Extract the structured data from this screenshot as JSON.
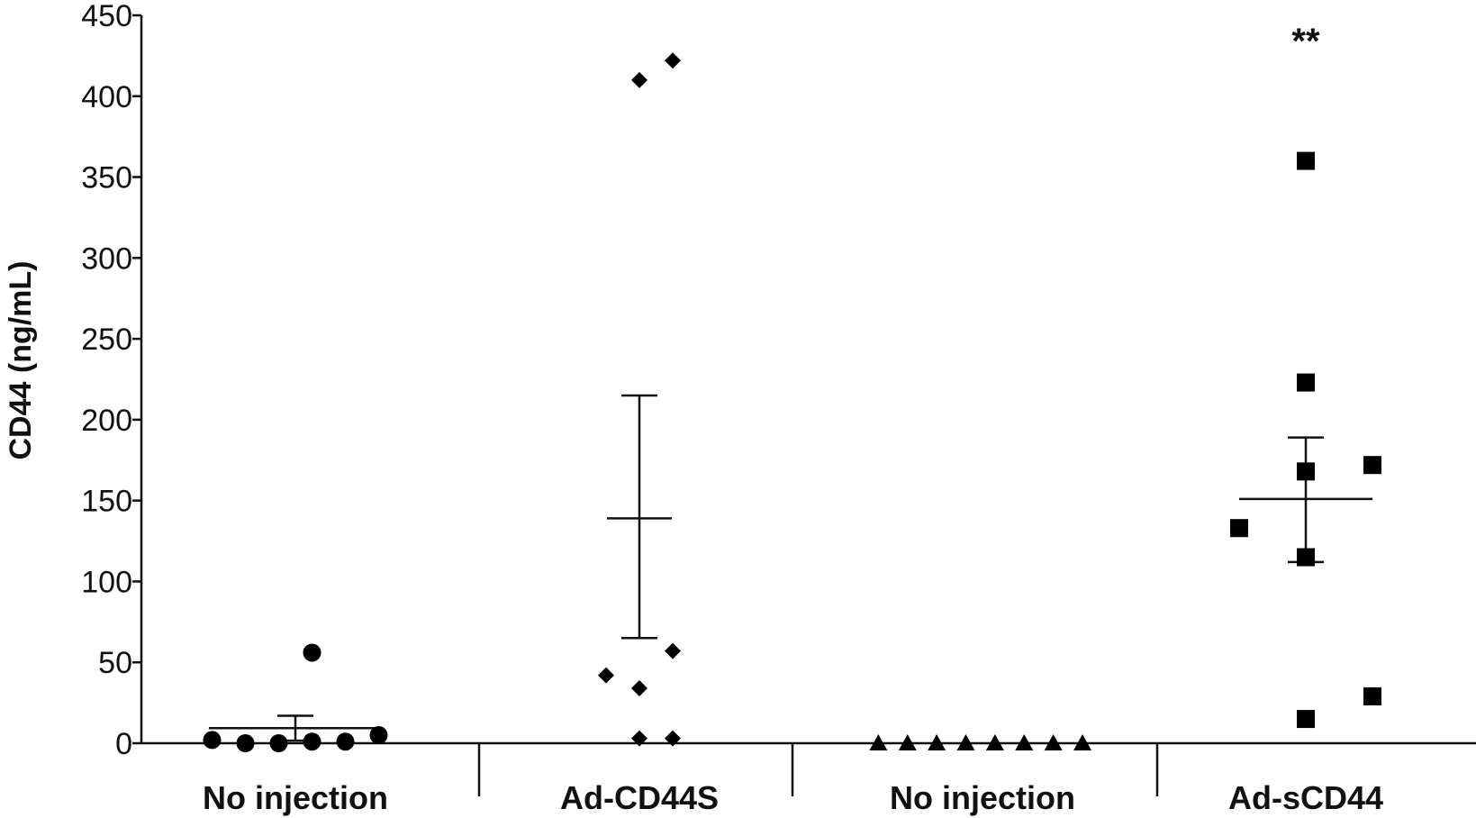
{
  "chart_data": {
    "type": "scatter",
    "title": "",
    "xlabel": "",
    "ylabel": "CD44  (ng/mL)",
    "ylim": [
      0,
      450
    ],
    "yticks": [
      "0",
      "50",
      "100",
      "150",
      "200",
      "250",
      "300",
      "350",
      "400",
      "450"
    ],
    "grid": false,
    "categories": [
      "No injection",
      "Ad-CD44S",
      "No injection",
      "Ad-sCD44"
    ],
    "groups": [
      {
        "category": "No injection",
        "marker": "circle",
        "points": [
          {
            "offset": -0.5,
            "y": 2
          },
          {
            "offset": -0.3,
            "y": 0
          },
          {
            "offset": -0.1,
            "y": 0
          },
          {
            "offset": 0.1,
            "y": 56
          },
          {
            "offset": 0.1,
            "y": 1
          },
          {
            "offset": 0.3,
            "y": 1
          },
          {
            "offset": 0.5,
            "y": 5
          }
        ],
        "mean": 9.3,
        "sem_upper": 17,
        "sem_lower": 1.6
      },
      {
        "category": "Ad-CD44S",
        "marker": "diamond",
        "points": [
          {
            "offset": -0.2,
            "y": 42
          },
          {
            "offset": 0.0,
            "y": 410
          },
          {
            "offset": 0.0,
            "y": 34
          },
          {
            "offset": 0.0,
            "y": 3
          },
          {
            "offset": 0.2,
            "y": 422
          },
          {
            "offset": 0.2,
            "y": 57
          },
          {
            "offset": 0.2,
            "y": 3
          }
        ],
        "mean": 139,
        "sem_upper": 215,
        "sem_lower": 65
      },
      {
        "category": "No injection",
        "marker": "triangle",
        "points": [
          {
            "offset": -0.625,
            "y": 0
          },
          {
            "offset": -0.45,
            "y": 0
          },
          {
            "offset": -0.275,
            "y": 0
          },
          {
            "offset": -0.1,
            "y": 0
          },
          {
            "offset": 0.075,
            "y": 0
          },
          {
            "offset": 0.25,
            "y": 0
          },
          {
            "offset": 0.425,
            "y": 0
          },
          {
            "offset": 0.6,
            "y": 0
          }
        ],
        "mean": null,
        "sem_upper": null,
        "sem_lower": null
      },
      {
        "category": "Ad-sCD44",
        "marker": "square",
        "points": [
          {
            "offset": -0.4,
            "y": 133
          },
          {
            "offset": 0.0,
            "y": 360
          },
          {
            "offset": 0.0,
            "y": 223
          },
          {
            "offset": 0.0,
            "y": 168
          },
          {
            "offset": 0.0,
            "y": 115
          },
          {
            "offset": 0.0,
            "y": 15
          },
          {
            "offset": 0.4,
            "y": 172
          },
          {
            "offset": 0.4,
            "y": 29
          }
        ],
        "mean": 151,
        "sem_upper": 189,
        "sem_lower": 112
      }
    ],
    "annotations": [
      {
        "text": "**",
        "category": "Ad-sCD44",
        "y": 440
      }
    ]
  }
}
